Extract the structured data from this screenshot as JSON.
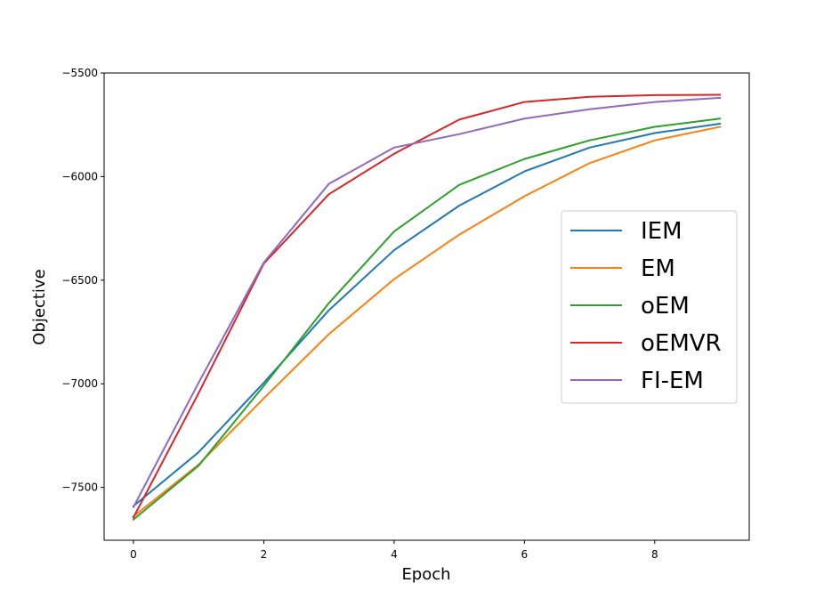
{
  "chart_data": {
    "type": "line",
    "title": "",
    "xlabel": "Epoch",
    "ylabel": "Objective",
    "xlim": [
      -0.45,
      9.45
    ],
    "ylim": [
      -7755,
      -5500
    ],
    "xticks": [
      0,
      2,
      4,
      6,
      8
    ],
    "yticks": [
      -7500,
      -7000,
      -6500,
      -6000,
      -5500
    ],
    "ytick_labels": [
      "−7500",
      "−7000",
      "−6500",
      "−6000",
      "−5500"
    ],
    "grid": false,
    "legend_position": "center-right",
    "x": [
      0,
      1,
      2,
      3,
      4,
      5,
      6,
      7,
      8,
      9
    ],
    "series": [
      {
        "name": "IEM",
        "color": "#1f77b4",
        "values": [
          -7590,
          -7330,
          -6995,
          -6645,
          -6355,
          -6140,
          -5975,
          -5860,
          -5790,
          -5745
        ]
      },
      {
        "name": "EM",
        "color": "#ff7f0e",
        "values": [
          -7640,
          -7390,
          -7070,
          -6760,
          -6495,
          -6280,
          -6095,
          -5935,
          -5825,
          -5760
        ]
      },
      {
        "name": "oEM",
        "color": "#2ca02c",
        "values": [
          -7655,
          -7395,
          -7010,
          -6610,
          -6265,
          -6040,
          -5915,
          -5825,
          -5760,
          -5720
        ]
      },
      {
        "name": "oEMVR",
        "color": "#d62728",
        "values": [
          -7645,
          -7045,
          -6420,
          -6085,
          -5890,
          -5725,
          -5640,
          -5615,
          -5607,
          -5605
        ]
      },
      {
        "name": "FI-EM",
        "color": "#9467bd",
        "values": [
          -7595,
          -6995,
          -6415,
          -6035,
          -5860,
          -5795,
          -5720,
          -5675,
          -5640,
          -5620
        ]
      }
    ]
  }
}
